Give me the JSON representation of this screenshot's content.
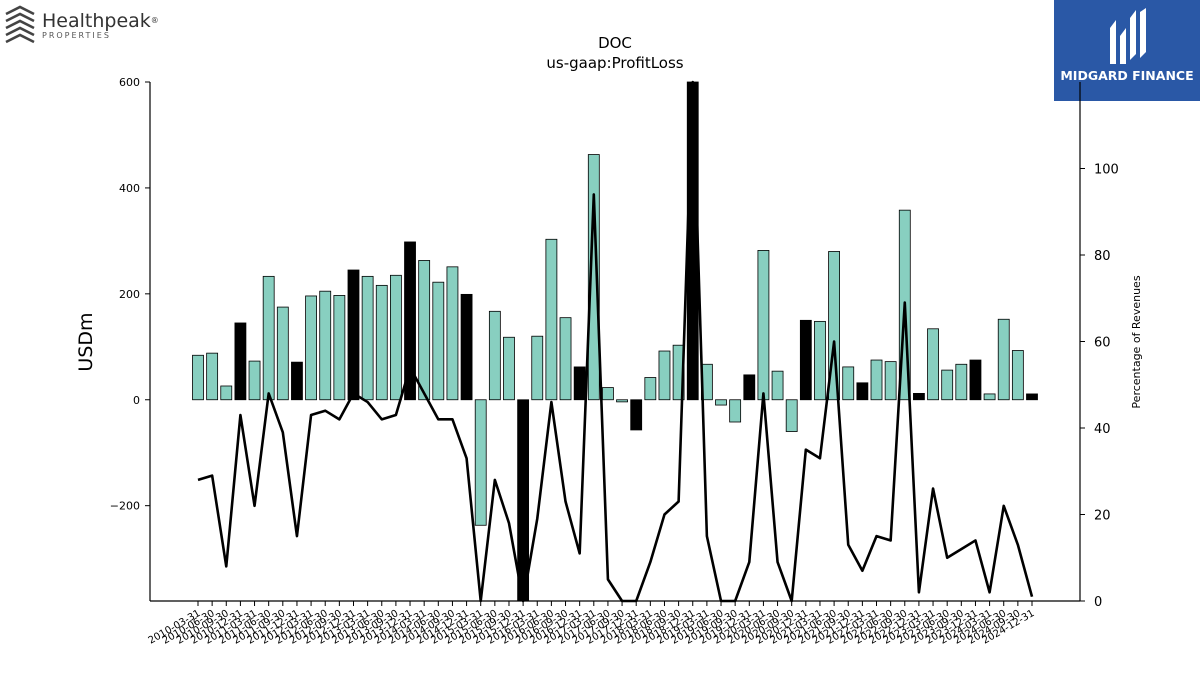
{
  "brand_left": {
    "name": "Healthpeak",
    "registered": "®",
    "sub": "PROPERTIES",
    "icon": "healthpeak-logo-icon"
  },
  "brand_right": {
    "name": "MIDGARD FINANCE",
    "icon": "midgard-logo-icon",
    "color": "#2a58a6"
  },
  "chart_data": {
    "type": "bar",
    "title": "DOC",
    "subtitle": "us-gaap:ProfitLoss",
    "ylabel": "USDm",
    "y2label": "Percentage of Revenues",
    "ylim": [
      -380,
      600
    ],
    "y2lim": [
      0,
      120
    ],
    "yticks": [
      -200,
      0,
      200,
      400,
      600
    ],
    "y2ticks": [
      0,
      20,
      40,
      60,
      80,
      100
    ],
    "colors": {
      "quarter": "#88cfc0",
      "annual": "#000000",
      "line": "#000000"
    },
    "categories": [
      "2010-03-31",
      "2010-06-30",
      "2010-09-30",
      "2010-12-31",
      "2011-03-31",
      "2011-06-30",
      "2011-09-30",
      "2011-12-31",
      "2012-03-31",
      "2012-06-30",
      "2012-09-30",
      "2012-12-31",
      "2013-03-31",
      "2013-06-30",
      "2013-09-30",
      "2013-12-31",
      "2014-03-31",
      "2014-06-30",
      "2014-09-30",
      "2014-12-31",
      "2015-03-31",
      "2015-06-30",
      "2015-09-30",
      "2015-12-31",
      "2016-03-31",
      "2016-06-30",
      "2016-09-30",
      "2016-12-31",
      "2017-03-31",
      "2017-06-30",
      "2017-09-30",
      "2017-12-31",
      "2018-03-31",
      "2018-06-30",
      "2018-09-30",
      "2018-12-31",
      "2019-03-31",
      "2019-06-30",
      "2019-09-30",
      "2019-12-31",
      "2020-03-31",
      "2020-06-30",
      "2020-09-30",
      "2020-12-31",
      "2021-03-31",
      "2021-06-30",
      "2021-09-30",
      "2021-12-31",
      "2022-03-31",
      "2022-06-30",
      "2022-09-30",
      "2022-12-31",
      "2023-03-31",
      "2023-06-30",
      "2023-09-30",
      "2023-12-31",
      "2024-03-31",
      "2024-06-30",
      "2024-09-30",
      "2024-12-31"
    ],
    "series": [
      {
        "values": [
          84,
          88,
          26,
          145,
          73,
          233,
          175,
          71,
          196,
          205,
          197,
          245,
          233,
          216,
          235,
          298,
          263,
          222,
          251,
          199,
          -237,
          167,
          118,
          -380,
          120,
          303,
          155,
          62,
          463,
          23,
          -4,
          -57,
          42,
          92,
          103,
          600,
          67,
          -10,
          -42,
          47,
          282,
          54,
          -60,
          150,
          148,
          280,
          62,
          32,
          75,
          72,
          358,
          12,
          134,
          56,
          67,
          75,
          11,
          152,
          93,
          11
        ],
        "annual": [
          false,
          false,
          false,
          true,
          false,
          false,
          false,
          true,
          false,
          false,
          false,
          true,
          false,
          false,
          false,
          true,
          false,
          false,
          false,
          true,
          false,
          false,
          false,
          true,
          false,
          false,
          false,
          true,
          false,
          false,
          false,
          true,
          false,
          false,
          false,
          true,
          false,
          false,
          false,
          true,
          false,
          false,
          false,
          true,
          false,
          false,
          false,
          true,
          false,
          false,
          false,
          true,
          false,
          false,
          false,
          true,
          false,
          false,
          false,
          true
        ]
      },
      {
        "values": [
          28,
          29,
          8,
          43,
          22,
          48,
          39,
          15,
          43,
          44,
          42,
          48,
          46,
          42,
          43,
          54,
          48,
          42,
          42,
          33,
          -5,
          28,
          18,
          -5,
          19,
          46,
          23,
          11,
          94,
          5,
          0,
          -2,
          9,
          20,
          23,
          120,
          15,
          0,
          -2,
          9,
          48,
          9,
          -2,
          35,
          33,
          60,
          13,
          7,
          15,
          14,
          69,
          2,
          26,
          10,
          12,
          14,
          2,
          22,
          13,
          1
        ]
      }
    ]
  }
}
